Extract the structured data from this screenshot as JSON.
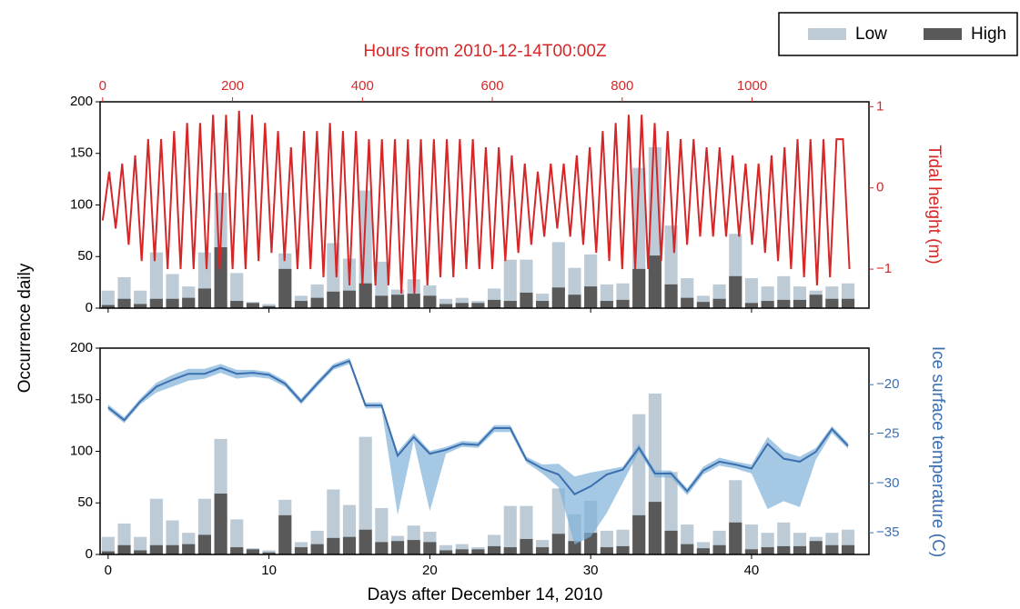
{
  "chart_data": [
    {
      "type": "bar",
      "x": [
        0,
        1,
        2,
        3,
        4,
        5,
        6,
        7,
        8,
        9,
        10,
        11,
        12,
        13,
        14,
        15,
        16,
        17,
        18,
        19,
        20,
        21,
        22,
        23,
        24,
        25,
        26,
        27,
        28,
        29,
        30,
        31,
        32,
        33,
        34,
        35,
        36,
        37,
        38,
        39,
        40,
        41,
        42,
        43,
        44,
        45,
        46
      ],
      "xlim": [
        -0.5,
        47.3
      ],
      "xticks": [
        0,
        10,
        20,
        30,
        40
      ],
      "ylabel": "Occurrence daily",
      "ylim": [
        0,
        200
      ],
      "yticks": [
        0,
        50,
        100,
        150,
        200
      ],
      "legend": "upper right",
      "series": [
        {
          "name": "Low",
          "color": "#bccbd6",
          "values": [
            17,
            30,
            17,
            54,
            33,
            21,
            54,
            112,
            34,
            6,
            4,
            53,
            12,
            23,
            63,
            48,
            114,
            45,
            18,
            28,
            22,
            9,
            10,
            7,
            19,
            47,
            47,
            14,
            64,
            39,
            52,
            23,
            24,
            136,
            156,
            80,
            29,
            12,
            23,
            72,
            29,
            21,
            31,
            21,
            17,
            21,
            24
          ]
        },
        {
          "name": "High",
          "color": "#595959",
          "values": [
            3,
            9,
            4,
            9,
            9,
            10,
            19,
            59,
            7,
            5,
            2,
            38,
            7,
            10,
            16,
            17,
            24,
            12,
            13,
            14,
            12,
            4,
            5,
            5,
            8,
            7,
            15,
            7,
            20,
            13,
            21,
            7,
            8,
            38,
            51,
            23,
            10,
            6,
            9,
            31,
            5,
            7,
            8,
            8,
            13,
            9,
            9
          ]
        }
      ],
      "x2label": "Hours from 2010-12-14T00:00Z",
      "x2lim": [
        -4,
        1180
      ],
      "x2ticks": [
        0,
        200,
        400,
        600,
        800,
        1000
      ],
      "y2label": "Tidal height (m)",
      "y2lim": [
        -1.48,
        1.06
      ],
      "y2ticks": [
        {
          "value": -1,
          "label": "−1"
        },
        0,
        1
      ],
      "line": {
        "color": "#d62728",
        "axis": "y2",
        "x": [
          0,
          10,
          20,
          30,
          40,
          50,
          60,
          70,
          80,
          90,
          100,
          110,
          120,
          130,
          140,
          150,
          160,
          170,
          180,
          190,
          200,
          210,
          220,
          230,
          240,
          250,
          260,
          270,
          280,
          290,
          300,
          310,
          320,
          330,
          340,
          350,
          360,
          370,
          380,
          390,
          400,
          410,
          420,
          430,
          440,
          450,
          460,
          470,
          480,
          490,
          500,
          510,
          520,
          530,
          540,
          550,
          560,
          570,
          580,
          590,
          600,
          610,
          620,
          630,
          640,
          650,
          660,
          670,
          680,
          690,
          700,
          710,
          720,
          730,
          740,
          750,
          760,
          770,
          780,
          790,
          800,
          810,
          820,
          830,
          840,
          850,
          860,
          870,
          880,
          890,
          900,
          910,
          920,
          930,
          940,
          950,
          960,
          970,
          980,
          990,
          1000,
          1010,
          1020,
          1030,
          1040,
          1050,
          1060,
          1070,
          1080,
          1090,
          1100,
          1110,
          1120,
          1130,
          1140,
          1150
        ],
        "values": [
          -0.4,
          0.2,
          -0.5,
          0.3,
          -0.7,
          0.4,
          -0.9,
          0.6,
          -0.9,
          0.6,
          -1.0,
          0.7,
          -1.0,
          0.8,
          -1.0,
          0.8,
          -1.0,
          0.9,
          -1.0,
          0.9,
          -1.0,
          0.95,
          -1.0,
          0.9,
          -0.9,
          0.8,
          -0.8,
          0.7,
          -0.9,
          0.5,
          -1.0,
          0.7,
          -1.0,
          0.7,
          -1.1,
          0.8,
          -1.1,
          0.7,
          -1.2,
          0.7,
          -1.2,
          0.6,
          -1.2,
          0.6,
          -1.2,
          0.6,
          -1.3,
          0.6,
          -1.3,
          0.6,
          -1.2,
          0.6,
          -1.1,
          0.6,
          -1.1,
          0.6,
          -1.0,
          0.6,
          -1.0,
          0.5,
          -1.0,
          0.5,
          -0.9,
          0.4,
          -0.8,
          0.3,
          -0.7,
          0.2,
          -0.6,
          0.3,
          -0.5,
          0.3,
          -0.6,
          0.4,
          -0.7,
          0.5,
          -0.8,
          0.7,
          -0.9,
          0.8,
          -1.0,
          0.9,
          -1.0,
          0.9,
          -1.0,
          0.8,
          -0.9,
          0.7,
          -0.8,
          0.6,
          -0.7,
          0.6,
          -0.6,
          0.5,
          -0.6,
          0.5,
          -0.6,
          0.4,
          -0.6,
          0.3,
          -0.7,
          0.3,
          -0.8,
          0.4,
          -0.9,
          0.5,
          -1.0,
          0.6,
          -1.1,
          0.6,
          -1.2,
          0.6,
          -1.1,
          0.6,
          0.6,
          -1.0
        ]
      }
    },
    {
      "type": "bar",
      "x": [
        0,
        1,
        2,
        3,
        4,
        5,
        6,
        7,
        8,
        9,
        10,
        11,
        12,
        13,
        14,
        15,
        16,
        17,
        18,
        19,
        20,
        21,
        22,
        23,
        24,
        25,
        26,
        27,
        28,
        29,
        30,
        31,
        32,
        33,
        34,
        35,
        36,
        37,
        38,
        39,
        40,
        41,
        42,
        43,
        44,
        45,
        46
      ],
      "xlim": [
        -0.5,
        47.3
      ],
      "xticks": [
        0,
        10,
        20,
        30,
        40
      ],
      "xlabel": "Days after December 14, 2010",
      "ylim": [
        0,
        200
      ],
      "yticks": [
        0,
        50,
        100,
        150,
        200
      ],
      "series": [
        {
          "name": "Low",
          "color": "#bccbd6",
          "values": [
            17,
            30,
            17,
            54,
            33,
            21,
            54,
            112,
            34,
            6,
            4,
            53,
            12,
            23,
            63,
            48,
            114,
            45,
            18,
            28,
            22,
            9,
            10,
            7,
            19,
            47,
            47,
            14,
            64,
            39,
            52,
            23,
            24,
            136,
            156,
            80,
            29,
            12,
            23,
            72,
            29,
            21,
            31,
            21,
            17,
            21,
            24
          ]
        },
        {
          "name": "High",
          "color": "#595959",
          "values": [
            3,
            9,
            4,
            9,
            9,
            10,
            19,
            59,
            7,
            5,
            2,
            38,
            7,
            10,
            16,
            17,
            24,
            12,
            13,
            14,
            12,
            4,
            5,
            5,
            8,
            7,
            15,
            7,
            20,
            13,
            21,
            7,
            8,
            38,
            51,
            23,
            10,
            6,
            9,
            31,
            5,
            7,
            8,
            8,
            13,
            9,
            9
          ]
        }
      ],
      "y2label": "Ice surface temperature (C)",
      "y2lim": [
        -37.2,
        -16.3
      ],
      "y2ticks": [
        {
          "value": -35,
          "label": "−35"
        },
        {
          "value": -30,
          "label": "−30"
        },
        {
          "value": -25,
          "label": "−25"
        },
        {
          "value": -20,
          "label": "−20"
        }
      ],
      "line": {
        "color": "#3b6fb0",
        "band_color": "#7fb2d8",
        "axis": "y2",
        "values": [
          -22.3,
          -23.6,
          -21.7,
          -20.2,
          -19.5,
          -18.9,
          -18.9,
          -18.3,
          -18.9,
          -18.8,
          -19.0,
          -19.9,
          -21.7,
          -19.9,
          -18.2,
          -17.6,
          -22.1,
          -22.1,
          -27.2,
          -25.3,
          -27.0,
          -26.6,
          -26.0,
          -26.1,
          -24.4,
          -24.4,
          -27.6,
          -28.5,
          -29.1,
          -31.1,
          -30.3,
          -29.1,
          -28.6,
          -26.4,
          -29.0,
          -29.0,
          -30.8,
          -28.7,
          -27.8,
          -28.1,
          -28.5,
          -26.0,
          -27.5,
          -27.8,
          -26.8,
          -24.5,
          -26.2
        ],
        "upper": [
          -22.0,
          -23.3,
          -21.4,
          -19.8,
          -19.0,
          -18.4,
          -18.4,
          -17.9,
          -18.5,
          -18.5,
          -18.7,
          -19.6,
          -21.4,
          -19.6,
          -17.9,
          -17.3,
          -21.8,
          -21.8,
          -26.8,
          -24.9,
          -26.7,
          -26.3,
          -25.7,
          -25.8,
          -24.1,
          -24.1,
          -27.3,
          -28.1,
          -28.0,
          -29.3,
          -28.9,
          -28.6,
          -28.3,
          -26.0,
          -28.7,
          -28.7,
          -30.5,
          -28.3,
          -27.4,
          -27.8,
          -28.1,
          -25.3,
          -26.8,
          -27.3,
          -26.4,
          -24.2,
          -25.9
        ],
        "lower": [
          -22.6,
          -23.9,
          -22.0,
          -20.8,
          -20.2,
          -19.6,
          -19.4,
          -18.8,
          -19.4,
          -19.2,
          -19.4,
          -20.2,
          -22.0,
          -20.2,
          -18.5,
          -17.9,
          -22.4,
          -22.4,
          -33.2,
          -25.7,
          -32.8,
          -27.0,
          -26.3,
          -26.4,
          -24.8,
          -24.8,
          -27.9,
          -29.0,
          -30.4,
          -36.2,
          -35.4,
          -33.0,
          -29.9,
          -26.8,
          -29.4,
          -29.4,
          -31.2,
          -29.1,
          -28.2,
          -28.5,
          -29.0,
          -32.6,
          -31.8,
          -32.4,
          -27.6,
          -24.9,
          -26.5
        ]
      }
    }
  ]
}
